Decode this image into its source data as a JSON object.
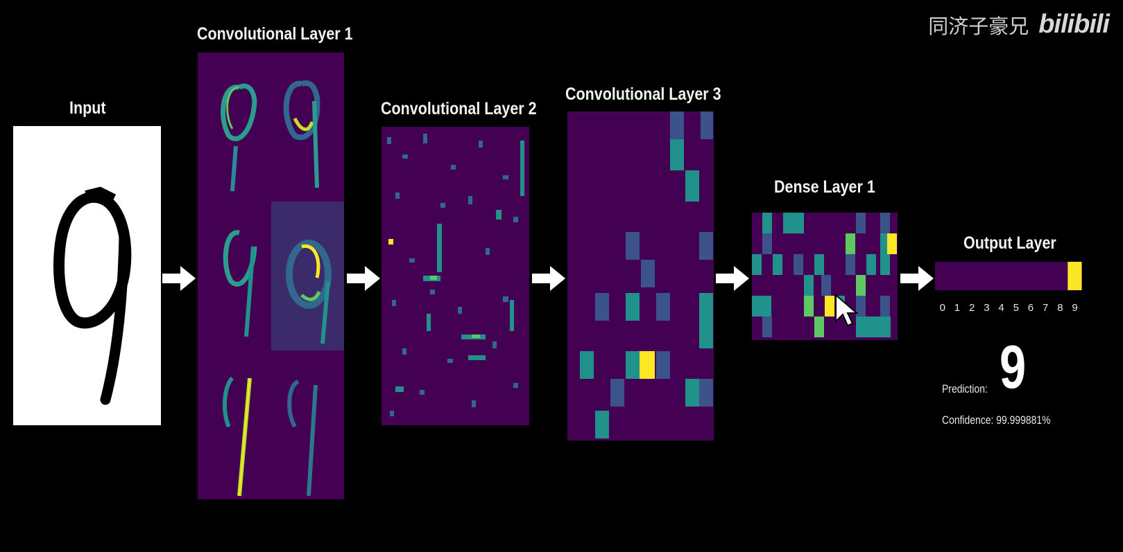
{
  "watermark": {
    "channel": "同济子豪兄",
    "logo": "bilibili"
  },
  "layers": {
    "input": "Input",
    "conv1": "Convolutional Layer 1",
    "conv2": "Convolutional Layer 2",
    "conv3": "Convolutional Layer 3",
    "dense1": "Dense Layer 1",
    "output": "Output Layer"
  },
  "input_digit": "9",
  "output": {
    "classes": [
      "0",
      "1",
      "2",
      "3",
      "4",
      "5",
      "6",
      "7",
      "8",
      "9"
    ],
    "activations": [
      0,
      0,
      0,
      0,
      0,
      0,
      0,
      0,
      0,
      1
    ]
  },
  "prediction": {
    "label": "Prediction:",
    "value": "9"
  },
  "confidence": {
    "label": "Confidence: 99.999881%"
  },
  "colors": {
    "background": "#000000",
    "panel": "#440154",
    "mid": "#31688e",
    "teal": "#21918c",
    "green": "#5ec962",
    "yellow": "#fde725"
  }
}
